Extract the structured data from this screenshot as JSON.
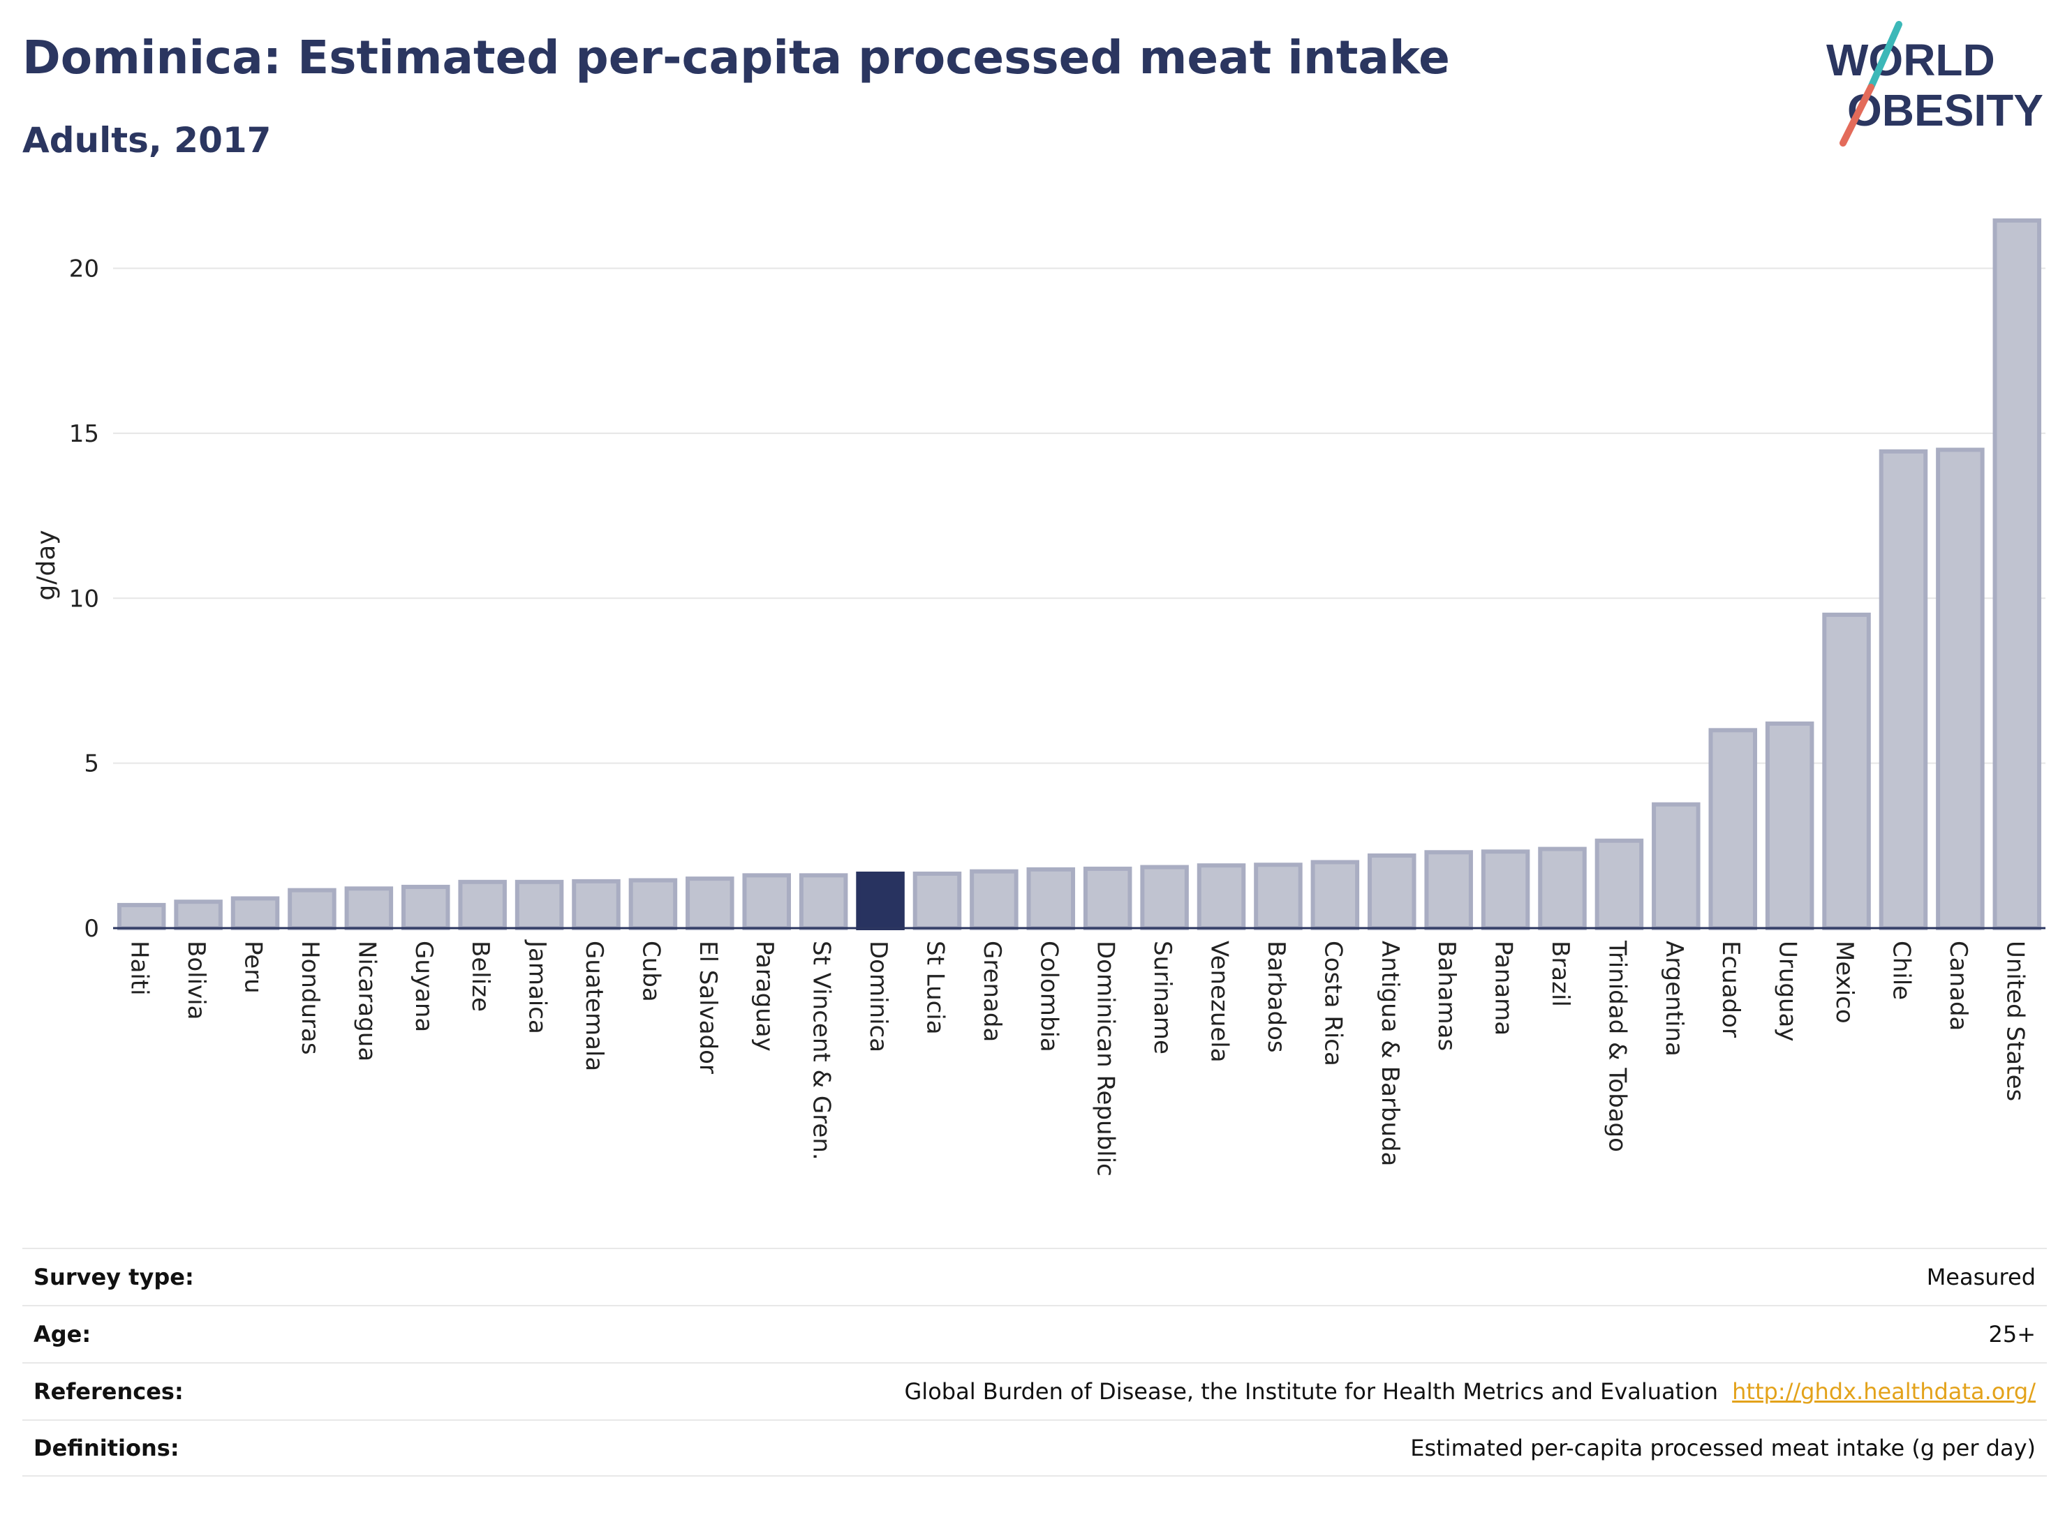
{
  "header": {
    "title": "Dominica: Estimated per-capita processed meat intake",
    "subtitle": "Adults, 2017"
  },
  "logo": {
    "line1": "WORLD",
    "line2": "OBESITY",
    "stroke_colors": [
      "#3cb8b8",
      "#e36b5a"
    ]
  },
  "chart_data": {
    "type": "bar",
    "ylabel": "g/day",
    "ylim": [
      0,
      22
    ],
    "yticks": [
      0,
      5,
      10,
      15,
      20
    ],
    "grid": true,
    "highlight": "Dominica",
    "colors": {
      "bar": "#c0c3d0",
      "bar_border": "#a9adc2",
      "highlight": "#283360",
      "axis": "#2b3660",
      "grid": "#e6e6e6"
    },
    "categories": [
      "Haiti",
      "Bolivia",
      "Peru",
      "Honduras",
      "Nicaragua",
      "Guyana",
      "Belize",
      "Jamaica",
      "Guatemala",
      "Cuba",
      "El Salvador",
      "Paraguay",
      "St Vincent & Gren.",
      "Dominica",
      "St Lucia",
      "Grenada",
      "Colombia",
      "Dominican Republic",
      "Suriname",
      "Venezuela",
      "Barbados",
      "Costa Rica",
      "Antigua & Barbuda",
      "Bahamas",
      "Panama",
      "Brazil",
      "Trinidad & Tobago",
      "Argentina",
      "Ecuador",
      "Uruguay",
      "Mexico",
      "Chile",
      "Canada",
      "United States"
    ],
    "values": [
      0.7,
      0.8,
      0.9,
      1.15,
      1.2,
      1.25,
      1.4,
      1.4,
      1.42,
      1.45,
      1.5,
      1.6,
      1.6,
      1.65,
      1.65,
      1.72,
      1.78,
      1.8,
      1.85,
      1.9,
      1.92,
      2.0,
      2.2,
      2.3,
      2.32,
      2.4,
      2.65,
      3.75,
      6.0,
      6.2,
      9.5,
      14.45,
      14.5,
      21.45
    ]
  },
  "meta": {
    "rows": [
      {
        "label": "Survey type:",
        "value": "Measured"
      },
      {
        "label": "Age:",
        "value": "25+"
      },
      {
        "label": "References:",
        "value": "Global Burden of Disease, the Institute for Health Metrics and Evaluation",
        "link": "http://ghdx.healthdata.org/"
      },
      {
        "label": "Definitions:",
        "value": "Estimated per-capita processed meat intake (g per day)"
      }
    ]
  }
}
